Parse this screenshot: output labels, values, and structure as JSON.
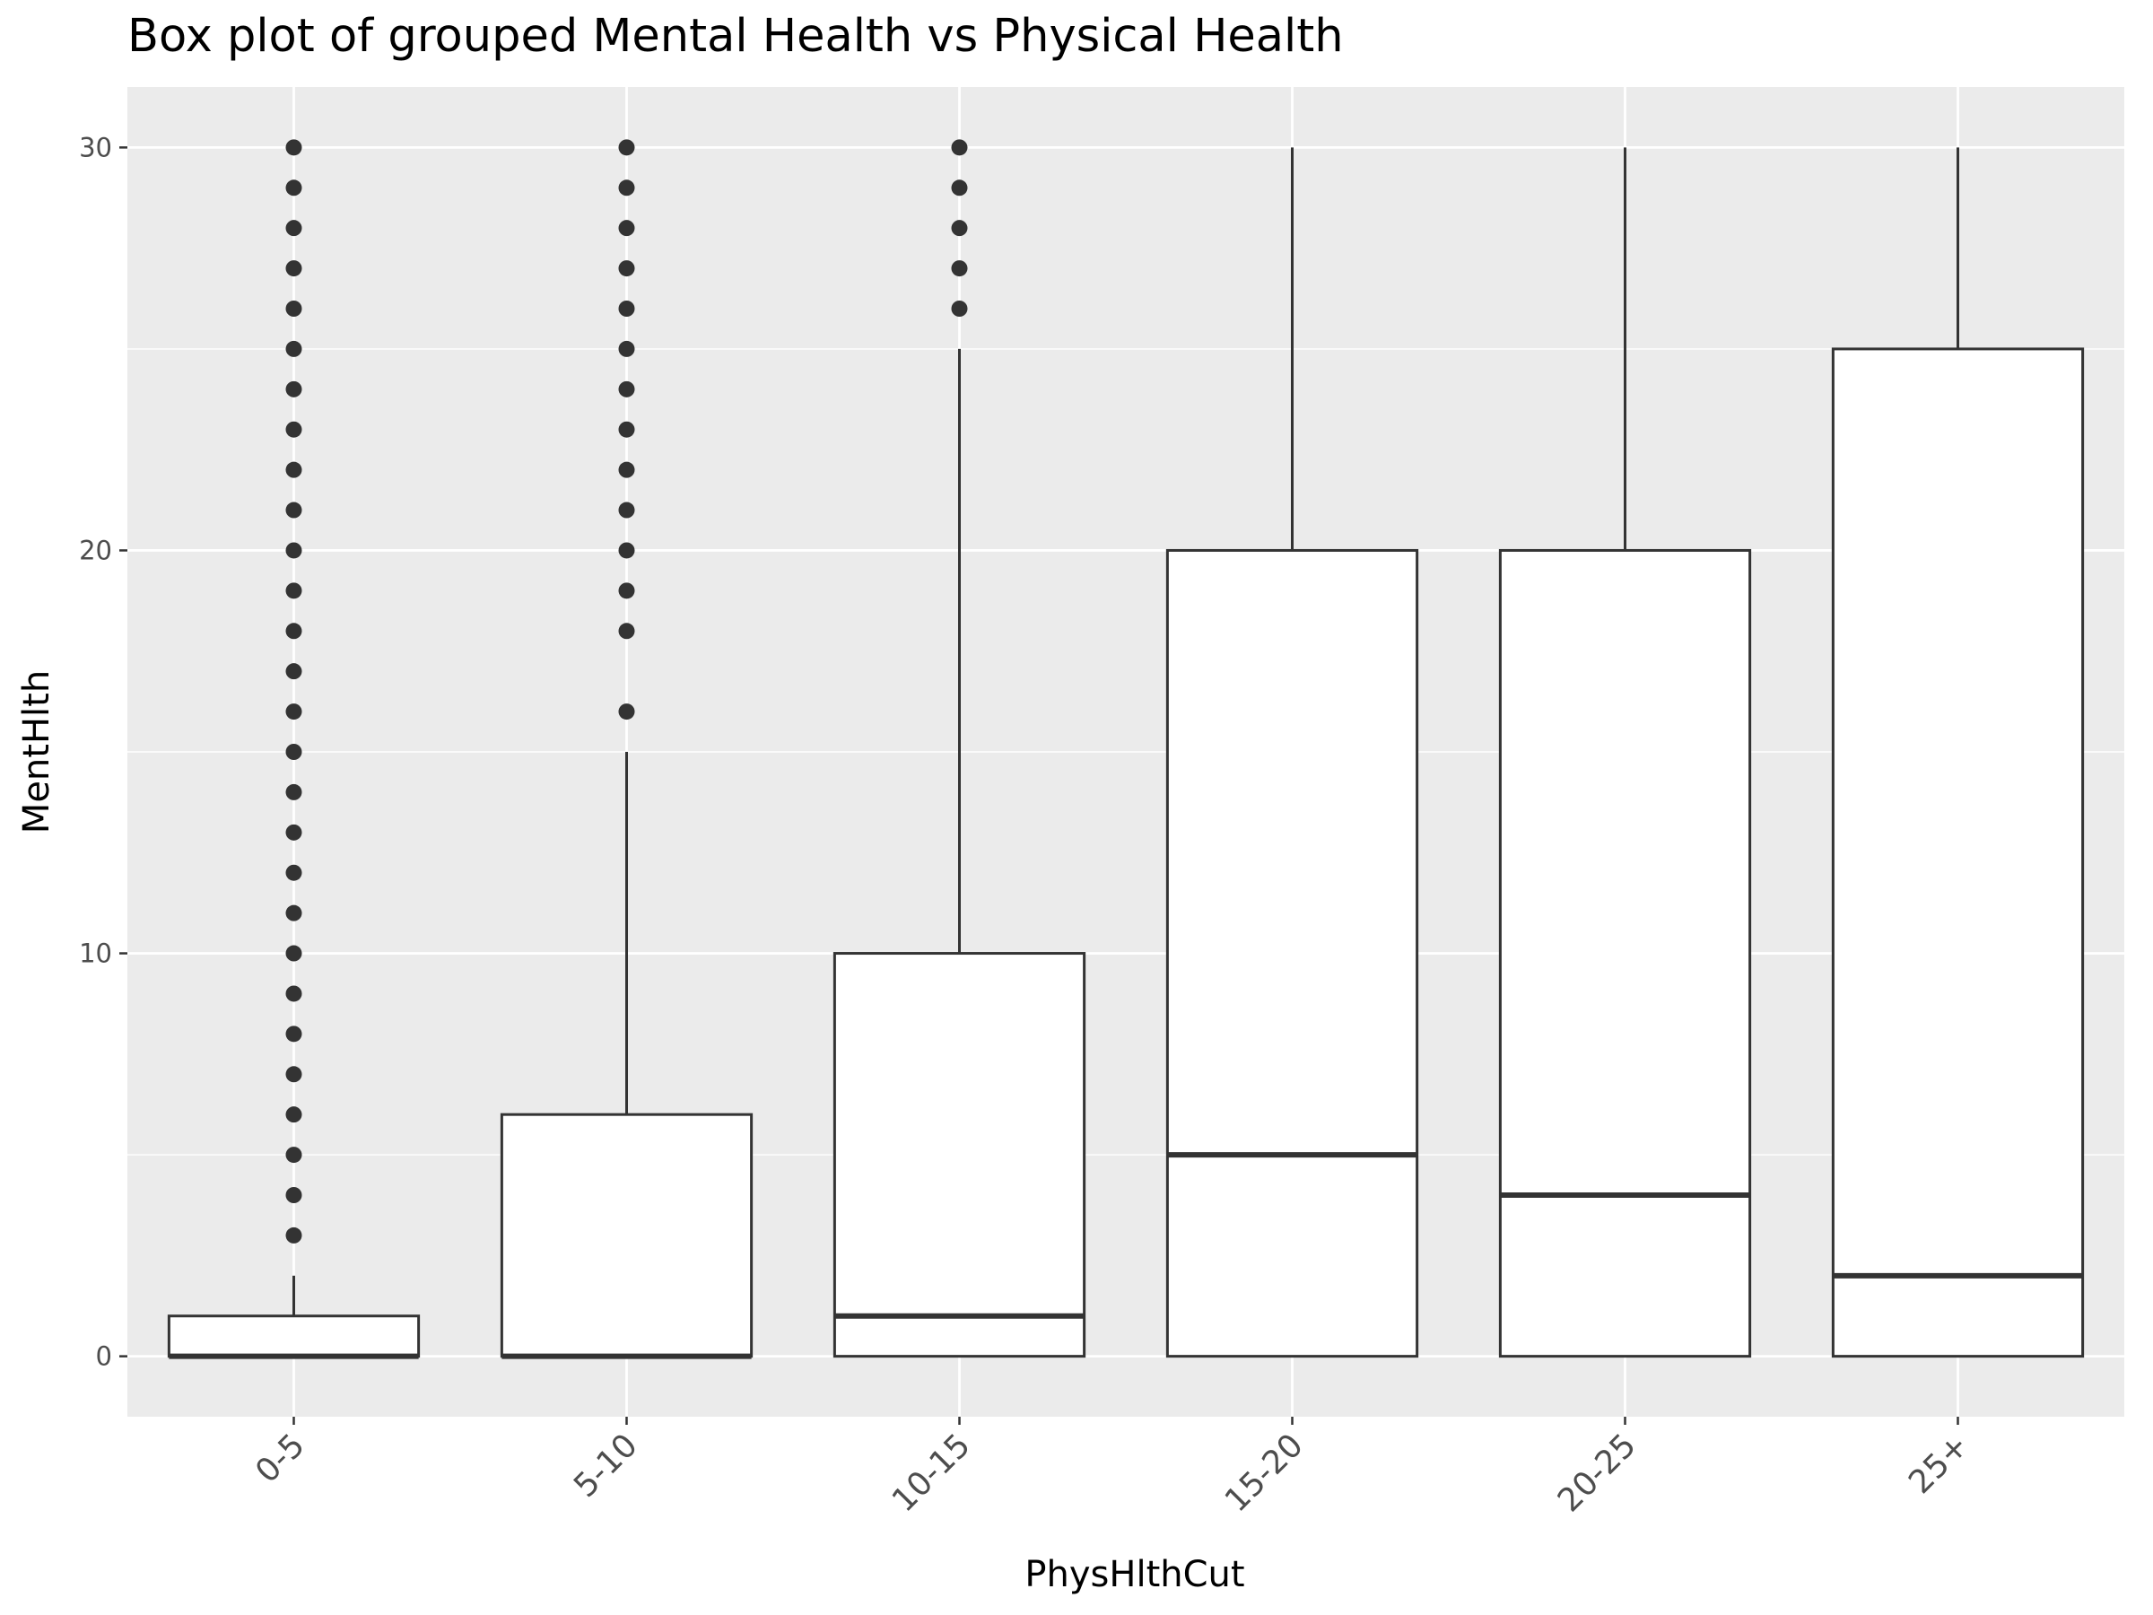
{
  "chart_data": {
    "type": "box",
    "title": "Box plot of grouped Mental Health vs Physical Health",
    "xlabel": "PhysHlthCut",
    "ylabel": "MentHlth",
    "categories": [
      "0-5",
      "5-10",
      "10-15",
      "15-20",
      "20-25",
      "25+"
    ],
    "ylim": [
      -1.5,
      31.5
    ],
    "yticks": [
      0,
      10,
      20,
      30
    ],
    "boxes": [
      {
        "category": "0-5",
        "lower_whisker": 0,
        "q1": 0,
        "median": 0,
        "q3": 1,
        "upper_whisker": 2,
        "outliers": [
          3,
          4,
          5,
          6,
          7,
          8,
          9,
          10,
          11,
          12,
          13,
          14,
          15,
          16,
          17,
          18,
          19,
          20,
          21,
          22,
          23,
          24,
          25,
          26,
          27,
          28,
          29,
          30
        ]
      },
      {
        "category": "5-10",
        "lower_whisker": 0,
        "q1": 0,
        "median": 0,
        "q3": 6,
        "upper_whisker": 15,
        "outliers": [
          16,
          18,
          19,
          20,
          21,
          22,
          23,
          24,
          25,
          26,
          27,
          28,
          29,
          30
        ]
      },
      {
        "category": "10-15",
        "lower_whisker": 0,
        "q1": 0,
        "median": 1,
        "q3": 10,
        "upper_whisker": 25,
        "outliers": [
          26,
          27,
          28,
          29,
          30
        ]
      },
      {
        "category": "15-20",
        "lower_whisker": 0,
        "q1": 0,
        "median": 5,
        "q3": 20,
        "upper_whisker": 30,
        "outliers": []
      },
      {
        "category": "20-25",
        "lower_whisker": 0,
        "q1": 0,
        "median": 4,
        "q3": 20,
        "upper_whisker": 30,
        "outliers": []
      },
      {
        "category": "25+",
        "lower_whisker": 0,
        "q1": 0,
        "median": 2,
        "q3": 25,
        "upper_whisker": 30,
        "outliers": []
      }
    ],
    "grid": true,
    "legend": "none",
    "colors": {
      "panel_background": "#ebebeb",
      "grid_line": "#ffffff",
      "box_fill": "#ffffff",
      "box_stroke": "#333333",
      "outlier": "#333333"
    }
  }
}
